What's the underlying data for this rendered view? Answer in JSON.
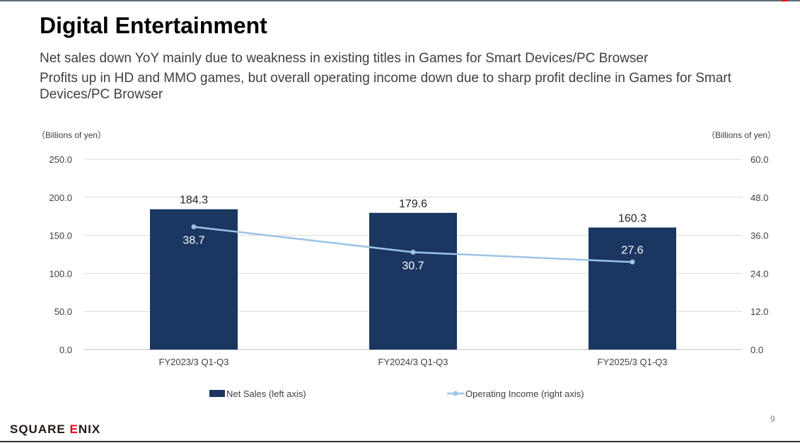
{
  "title": "Digital Entertainment",
  "subtitles": [
    "Net sales down YoY mainly due to weakness in existing titles in Games for Smart Devices/PC Browser",
    "Profits up in HD and MMO games, but overall operating income down due to sharp profit decline in Games for Smart Devices/PC Browser"
  ],
  "logo": "SQUARE ENIX",
  "page_number": "9",
  "colors": {
    "bar": "#1b3660",
    "line": "#9dc3e6",
    "accent": "#e60012"
  },
  "chart_data": {
    "type": "bar+line",
    "categories": [
      "FY2023/3 Q1-Q3",
      "FY2024/3 Q1-Q3",
      "FY2025/3 Q1-Q3"
    ],
    "series": [
      {
        "name": "Net Sales (left axis)",
        "type": "bar",
        "axis": "left",
        "values": [
          184.3,
          179.6,
          160.3
        ],
        "labels": [
          "184.3",
          "179.6",
          "160.3"
        ]
      },
      {
        "name": "Operating Income (right axis)",
        "type": "line",
        "axis": "right",
        "values": [
          38.7,
          30.7,
          27.6
        ],
        "labels": [
          "38.7",
          "30.7",
          "27.6"
        ]
      }
    ],
    "left_axis": {
      "unit_label": "（Billions of yen）",
      "ylim": [
        0,
        250
      ],
      "ticks": [
        "0.0",
        "50.0",
        "100.0",
        "150.0",
        "200.0",
        "250.0"
      ]
    },
    "right_axis": {
      "unit_label": "（Billions of yen）",
      "ylim": [
        0,
        60
      ],
      "ticks": [
        "0.0",
        "12.0",
        "24.0",
        "36.0",
        "48.0",
        "60.0"
      ]
    },
    "grid": true,
    "legend_placement": "bottom"
  }
}
